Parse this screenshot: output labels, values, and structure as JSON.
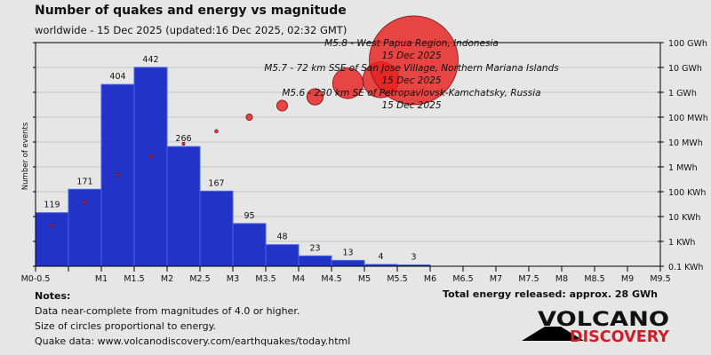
{
  "title": "Number of quakes and energy vs magnitude",
  "subtitle": "worldwide - 15 Dec 2025 (updated:16 Dec 2025, 02:32 GMT)",
  "notes": {
    "heading": "Notes:",
    "lines": [
      "Data near-complete from magnitudes of 4.0 or higher.",
      "Size of circles proportional to energy.",
      "Quake data: www.volcanodiscovery.com/earthquakes/today.html"
    ]
  },
  "total": "Total energy released: approx. 28 GWh",
  "logo": {
    "line1": "VOLCANO",
    "line2": "DISCOVERY"
  },
  "colors": {
    "bar": "#2233c8",
    "bar_edge": "#4466ee",
    "circle": "#e62020",
    "logo_red": "#cc1f2b"
  },
  "chart_data": {
    "type": "bar",
    "ylabel": "Number of events",
    "ylim": [
      0,
      497
    ],
    "x_ticks": [
      "M0-0.5",
      "",
      "M1",
      "M1.5",
      "M2",
      "M2.5",
      "M3",
      "M3.5",
      "M4",
      "M4.5",
      "M5",
      "M5.5",
      "M6",
      "M6.5",
      "M7",
      "M7.5",
      "M8",
      "M8.5",
      "M9",
      "M9.5"
    ],
    "counts": [
      119,
      171,
      404,
      442,
      266,
      167,
      95,
      48,
      23,
      13,
      4,
      3
    ],
    "energy_series": {
      "name": "Energy (kWh)",
      "scale": "log",
      "values_kwh": [
        4.4,
        37,
        480,
        2700,
        8500,
        27000,
        100000,
        290000,
        660000,
        2300000,
        3200000,
        19500000
      ]
    },
    "y2_ticks": [
      "100 GWh",
      "10 GWh",
      "1 GWh",
      "100 MWh",
      "10 MWh",
      "1 MWh",
      "100 KWh",
      "10 KWh",
      "1 KWh",
      "0.1 KWh"
    ],
    "annotations": [
      {
        "text": "M5.8 - West Papua Region, Indonesia",
        "date": "15 Dec 2025"
      },
      {
        "text": "M5.7 - 72 km SSE of San Jose Village, Northern Mariana Islands",
        "date": "15 Dec 2025"
      },
      {
        "text": "M5.6 - 230 km SE of Petropavlovsk-Kamchatsky, Russia",
        "date": "15 Dec 2025"
      }
    ]
  }
}
